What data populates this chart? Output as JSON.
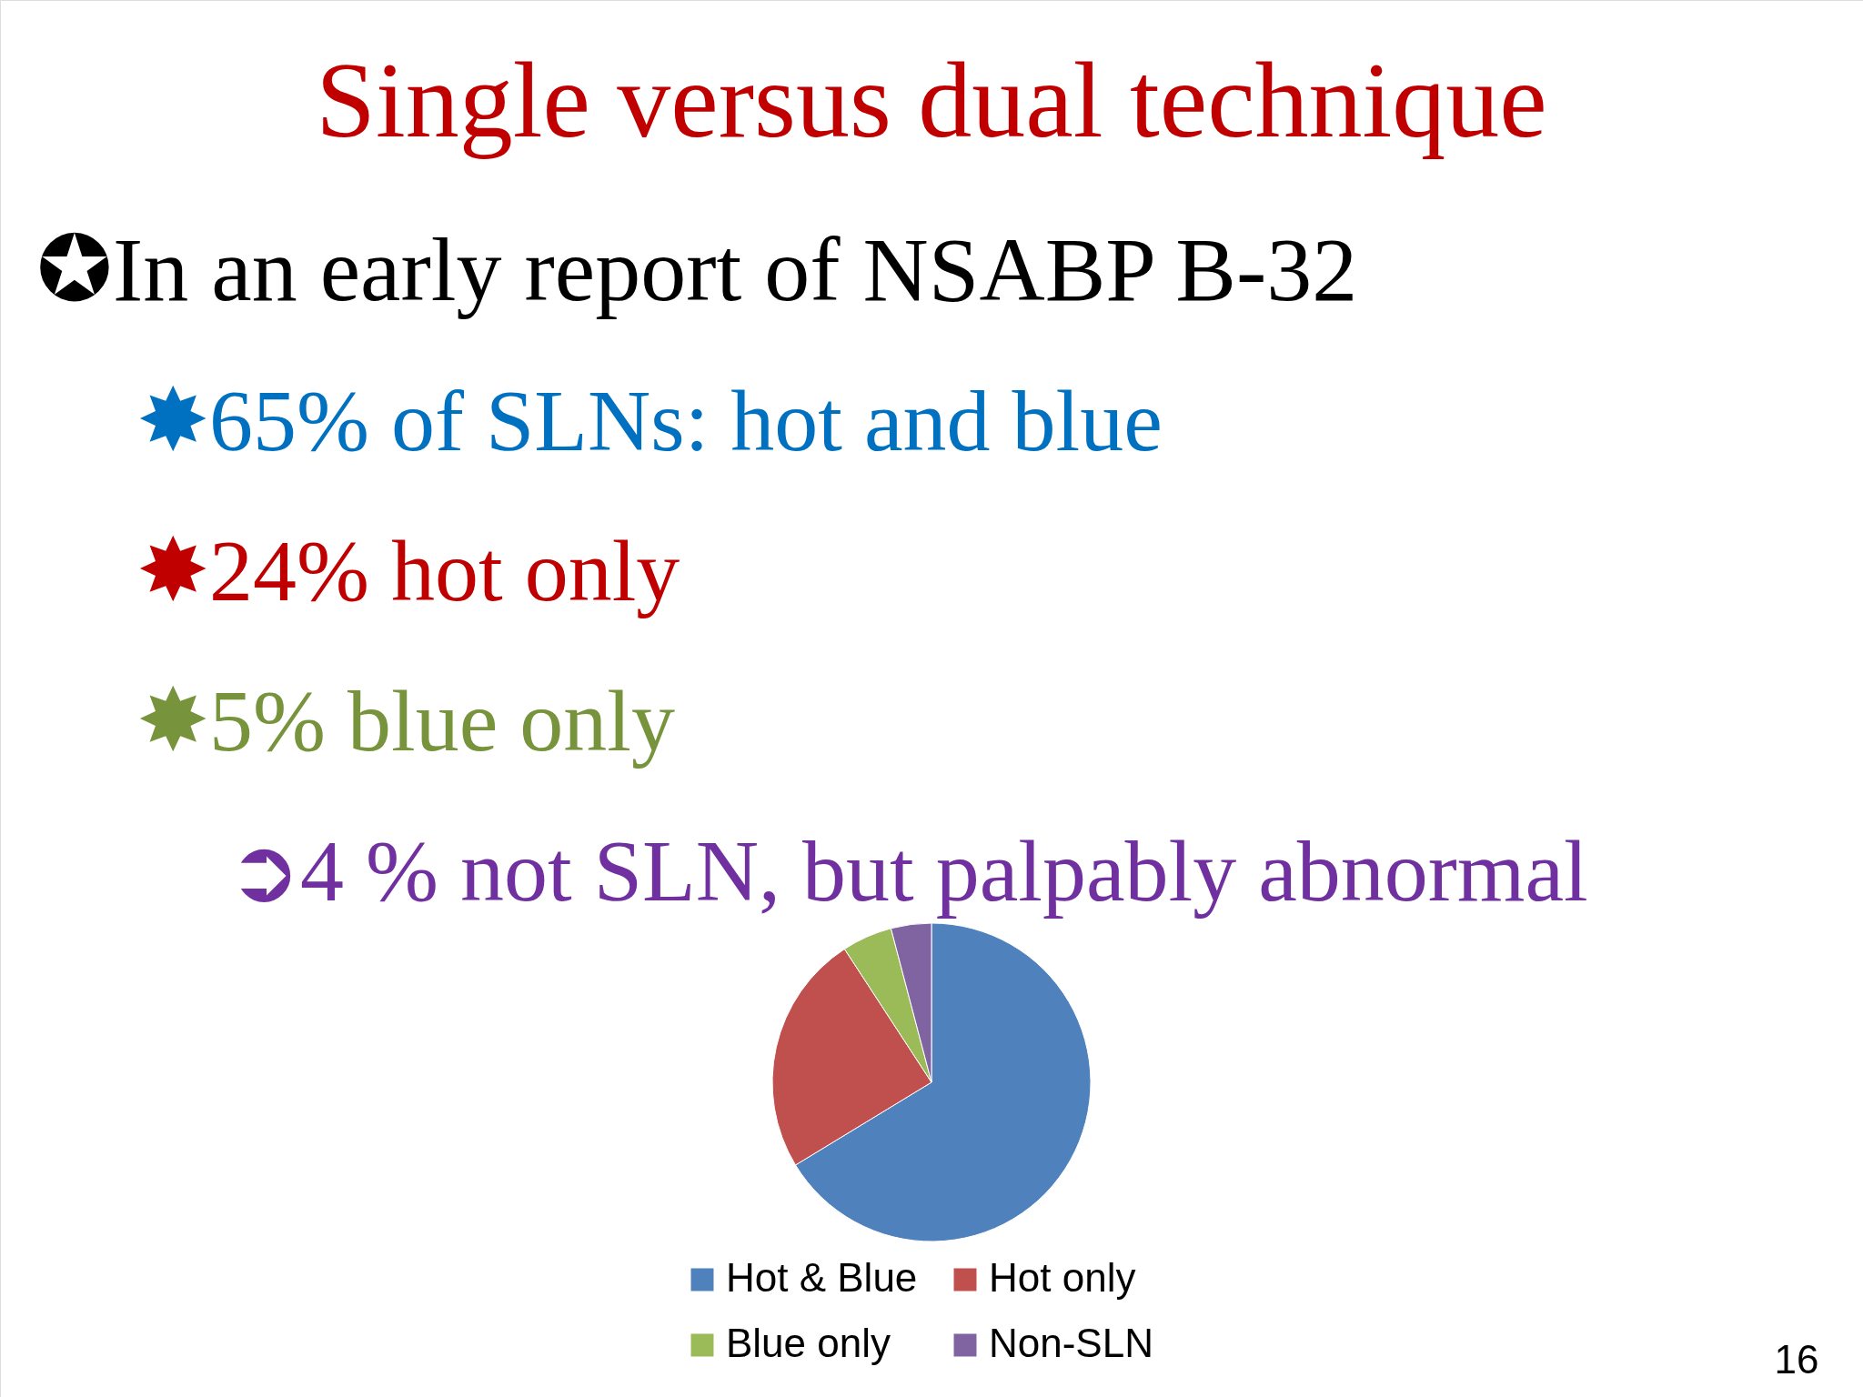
{
  "chart_data": {
    "type": "pie",
    "title": "Single versus dual technique",
    "categories": [
      "Hot & Blue",
      "Hot only",
      "Blue only",
      "Non-SLN"
    ],
    "values": [
      66.3,
      24.5,
      5.1,
      4.1
    ],
    "colors": [
      "#4f81bd",
      "#c0504d",
      "#9bbb59",
      "#8064a2"
    ],
    "legend": "bottom",
    "annotations": [
      "✪In an early report of NSABP B-32",
      "✸65% of SLNs: hot and blue",
      "✸24% hot only",
      "✸5% blue only",
      "➲4 % not SLN, but palpably abnormal",
      "16"
    ]
  }
}
